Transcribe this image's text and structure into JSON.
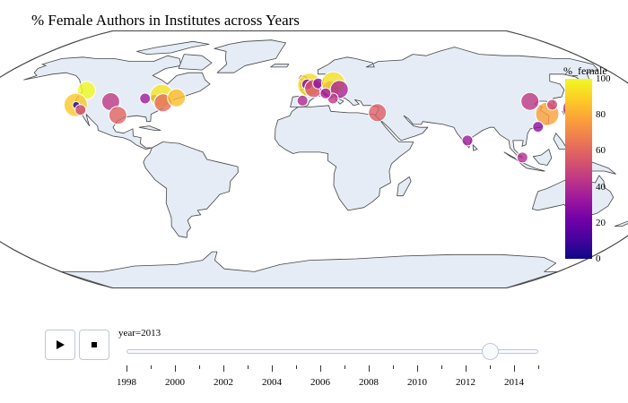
{
  "title": "% Female Authors in Institutes across Years",
  "colorbar": {
    "title": "%_female",
    "ticks": [
      "100",
      "80",
      "60",
      "40",
      "20",
      "0"
    ],
    "colorscale": [
      "#0d0887",
      "#46039f",
      "#7201a8",
      "#9c179e",
      "#bd3786",
      "#d8576b",
      "#ed7953",
      "#fb9f3a",
      "#fdca26",
      "#f0f921"
    ]
  },
  "controls": {
    "play_icon": "play-icon",
    "stop_icon": "stop-icon"
  },
  "slider": {
    "current_label": "year=2013",
    "current_year": 2013,
    "min_year": 1998,
    "max_year": 2015,
    "tick_labels": [
      "1998",
      "2000",
      "2002",
      "2004",
      "2006",
      "2008",
      "2010",
      "2012",
      "2014"
    ]
  },
  "map": {
    "projection": "natural-earth",
    "land_color": "#e5ecf6",
    "coast_color": "#444444",
    "points": [
      {
        "lon": -122.3,
        "lat": 47.6,
        "pct": 100,
        "size": "large"
      },
      {
        "lon": -122.2,
        "lat": 37.4,
        "pct": 88,
        "size": "xlarge"
      },
      {
        "lon": -121.9,
        "lat": 37.3,
        "pct": 5,
        "size": "tiny"
      },
      {
        "lon": -118.2,
        "lat": 34.0,
        "pct": 50,
        "size": "small"
      },
      {
        "lon": -104.9,
        "lat": 39.7,
        "pct": 45,
        "size": "large"
      },
      {
        "lon": -97.7,
        "lat": 30.3,
        "pct": 60,
        "size": "large"
      },
      {
        "lon": -87.6,
        "lat": 41.9,
        "pct": 35,
        "size": "small"
      },
      {
        "lon": -83.0,
        "lat": 42.3,
        "pct": 15,
        "size": "tiny"
      },
      {
        "lon": -79.4,
        "lat": 43.7,
        "pct": 95,
        "size": "xlarge"
      },
      {
        "lon": -77.0,
        "lat": 38.9,
        "pct": 62,
        "size": "large"
      },
      {
        "lon": -71.1,
        "lat": 42.4,
        "pct": 85,
        "size": "large"
      },
      {
        "lon": -0.1,
        "lat": 51.5,
        "pct": 92,
        "size": "xlarge"
      },
      {
        "lon": -3.7,
        "lat": 40.4,
        "pct": 40,
        "size": "small"
      },
      {
        "lon": -1.3,
        "lat": 51.8,
        "pct": 25,
        "size": "small"
      },
      {
        "lon": 2.3,
        "lat": 48.9,
        "pct": 55,
        "size": "large"
      },
      {
        "lon": 4.9,
        "lat": 52.4,
        "pct": 30,
        "size": "small"
      },
      {
        "lon": 8.5,
        "lat": 47.4,
        "pct": 48,
        "size": "small"
      },
      {
        "lon": 11.6,
        "lat": 48.1,
        "pct": 42,
        "size": "large"
      },
      {
        "lon": 13.4,
        "lat": 52.5,
        "pct": 95,
        "size": "xlarge"
      },
      {
        "lon": 16.4,
        "lat": 48.2,
        "pct": 38,
        "size": "large"
      },
      {
        "lon": 12.5,
        "lat": 41.9,
        "pct": 45,
        "size": "small"
      },
      {
        "lon": 8.7,
        "lat": 45.5,
        "pct": 35,
        "size": "small"
      },
      {
        "lon": 34.8,
        "lat": 32.1,
        "pct": 58,
        "size": "large"
      },
      {
        "lon": 77.6,
        "lat": 13.0,
        "pct": 35,
        "size": "small"
      },
      {
        "lon": 116.4,
        "lat": 39.9,
        "pct": 45,
        "size": "large"
      },
      {
        "lon": 103.8,
        "lat": 1.3,
        "pct": 40,
        "size": "small"
      },
      {
        "lon": 121.5,
        "lat": 31.2,
        "pct": 78,
        "size": "xlarge"
      },
      {
        "lon": 114.1,
        "lat": 22.4,
        "pct": 30,
        "size": "small"
      },
      {
        "lon": 126.9,
        "lat": 37.5,
        "pct": 50,
        "size": "small"
      },
      {
        "lon": 139.7,
        "lat": 35.7,
        "pct": 98,
        "size": "xlarge"
      },
      {
        "lon": 135.8,
        "lat": 35.0,
        "pct": 45,
        "size": "large"
      },
      {
        "lon": 139.8,
        "lat": 36.0,
        "pct": 5,
        "size": "tiny"
      }
    ]
  }
}
